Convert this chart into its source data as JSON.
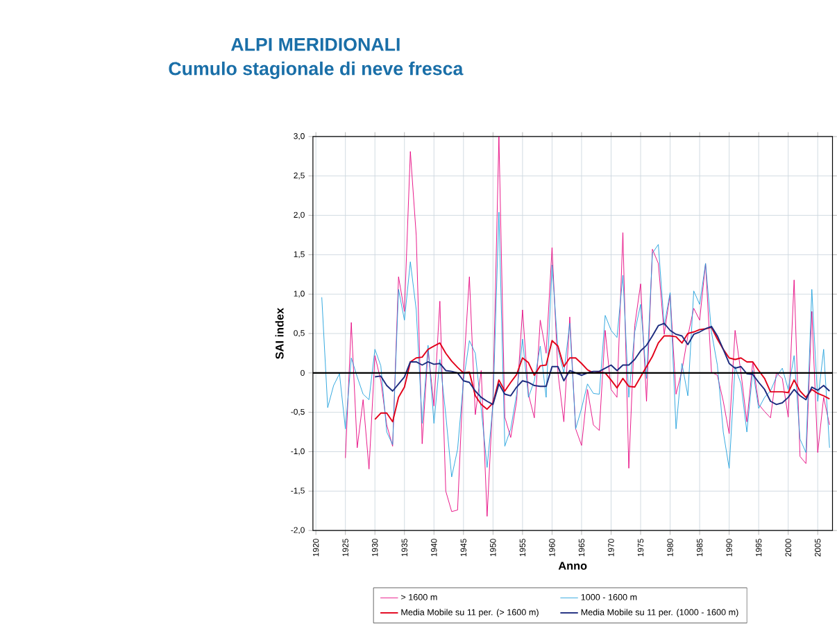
{
  "chart_data": {
    "type": "line",
    "title": "ALPI MERIDIONALI",
    "subtitle": "Cumulo stagionale di neve fresca",
    "xlabel": "Anno",
    "ylabel": "SAI index",
    "xlim": [
      1919.5,
      2007.5
    ],
    "xticks": [
      1920,
      1925,
      1930,
      1935,
      1940,
      1945,
      1950,
      1955,
      1960,
      1965,
      1970,
      1975,
      1980,
      1985,
      1990,
      1995,
      2000,
      2005
    ],
    "ylim": [
      -2,
      3
    ],
    "yticks": [
      {
        "value": -2,
        "label": "-2,0"
      },
      {
        "value": -1.5,
        "label": "-1,5"
      },
      {
        "value": -1,
        "label": "-1,0"
      },
      {
        "value": -0.5,
        "label": "-0,5"
      },
      {
        "value": 0,
        "label": "0"
      },
      {
        "value": 0.5,
        "label": "0,5"
      },
      {
        "value": 1,
        "label": "1,0"
      },
      {
        "value": 1.5,
        "label": "1,5"
      },
      {
        "value": 2,
        "label": "2,0"
      },
      {
        "value": 2.5,
        "label": "2,5"
      },
      {
        "value": 3,
        "label": "3,0"
      }
    ],
    "grid": true,
    "legend": "bottom",
    "marker": "none",
    "line_style": "solid",
    "ref_lines": [
      {
        "axis": "y",
        "value": 0,
        "color": "#000000"
      }
    ],
    "x": [
      1921,
      1922,
      1923,
      1924,
      1925,
      1926,
      1927,
      1928,
      1929,
      1930,
      1931,
      1932,
      1933,
      1934,
      1935,
      1936,
      1937,
      1938,
      1939,
      1940,
      1941,
      1942,
      1943,
      1944,
      1945,
      1946,
      1947,
      1948,
      1949,
      1950,
      1951,
      1952,
      1953,
      1954,
      1955,
      1956,
      1957,
      1958,
      1959,
      1960,
      1961,
      1962,
      1963,
      1964,
      1965,
      1966,
      1967,
      1968,
      1969,
      1970,
      1971,
      1972,
      1973,
      1974,
      1975,
      1976,
      1977,
      1978,
      1979,
      1980,
      1981,
      1982,
      1983,
      1984,
      1985,
      1986,
      1987,
      1988,
      1989,
      1990,
      1991,
      1992,
      1993,
      1994,
      1995,
      1996,
      1997,
      1998,
      1999,
      2000,
      2001,
      2002,
      2003,
      2004,
      2005,
      2006,
      2007
    ],
    "series": [
      {
        "name": "> 1600 m",
        "color": "#e6007e",
        "values": [
          null,
          null,
          null,
          null,
          -1.08,
          0.64,
          -0.95,
          -0.34,
          -1.22,
          0.22,
          -0.1,
          -0.66,
          -0.93,
          1.22,
          0.78,
          2.81,
          1.74,
          -0.9,
          0.3,
          -0.42,
          0.91,
          -1.5,
          -1.76,
          -1.74,
          0.0,
          1.22,
          -0.53,
          0.03,
          -1.82,
          -0.3,
          3.0,
          -0.56,
          -0.82,
          -0.36,
          0.8,
          -0.27,
          -0.57,
          0.67,
          0.25,
          1.59,
          0.0,
          -0.62,
          0.71,
          -0.71,
          -0.92,
          -0.21,
          -0.66,
          -0.73,
          0.54,
          -0.21,
          -0.31,
          1.78,
          -1.21,
          0.6,
          1.13,
          -0.36,
          1.57,
          1.39,
          0.49,
          1.0,
          -0.27,
          0.03,
          0.47,
          0.82,
          0.67,
          1.39,
          0.01,
          -0.03,
          -0.36,
          -0.77,
          0.54,
          0.0,
          -0.62,
          0.14,
          -0.4,
          -0.49,
          -0.57,
          0.0,
          -0.07,
          -0.56,
          1.18,
          -1.06,
          -1.15,
          0.78,
          -1.01,
          -0.31,
          -0.66
        ]
      },
      {
        "name": "1000 - 1600 m",
        "color": "#1ea0dc",
        "values": [
          0.96,
          -0.44,
          -0.16,
          -0.01,
          -0.71,
          0.19,
          -0.05,
          -0.27,
          -0.34,
          0.3,
          0.09,
          -0.75,
          -0.91,
          1.06,
          0.67,
          1.41,
          0.8,
          -0.64,
          0.35,
          -0.64,
          0.17,
          -0.53,
          -1.32,
          -0.97,
          -0.1,
          0.41,
          0.25,
          -0.45,
          -1.2,
          -0.4,
          2.04,
          -0.93,
          -0.71,
          -0.27,
          0.43,
          -0.31,
          -0.1,
          0.34,
          -0.31,
          1.37,
          0.3,
          0.0,
          0.63,
          -0.71,
          -0.45,
          -0.14,
          -0.26,
          -0.27,
          0.73,
          0.54,
          0.45,
          1.24,
          -0.31,
          0.52,
          0.87,
          -0.07,
          1.52,
          1.63,
          0.6,
          1.02,
          -0.71,
          0.12,
          -0.29,
          1.04,
          0.87,
          1.39,
          0.52,
          0.1,
          -0.75,
          -1.21,
          0.08,
          -0.14,
          -0.75,
          0.03,
          -0.45,
          -0.31,
          -0.23,
          -0.05,
          0.06,
          -0.21,
          0.22,
          -0.84,
          -1.01,
          1.06,
          -0.36,
          0.3,
          -0.95
        ]
      },
      {
        "name": "Media Mobile su 11 per. (> 1600 m)",
        "color": "#e2001a",
        "x": [
          1930,
          1931,
          1932,
          1933,
          1934,
          1935,
          1936,
          1937,
          1938,
          1939,
          1940,
          1941,
          1942,
          1943,
          1944,
          1945,
          1946,
          1947,
          1948,
          1949,
          1950,
          1951,
          1952,
          1953,
          1954,
          1955,
          1956,
          1957,
          1958,
          1959,
          1960,
          1961,
          1962,
          1963,
          1964,
          1965,
          1966,
          1967,
          1968,
          1969,
          1970,
          1971,
          1972,
          1973,
          1974,
          1975,
          1976,
          1977,
          1978,
          1979,
          1980,
          1981,
          1982,
          1983,
          1984,
          1985,
          1986,
          1987,
          1988,
          1989,
          1990,
          1991,
          1992,
          1993,
          1994,
          1995,
          1996,
          1997,
          1998,
          1999,
          2000,
          2001,
          2002,
          2003,
          2004,
          2005,
          2006,
          2007
        ],
        "values": [
          -0.59,
          -0.51,
          -0.51,
          -0.62,
          -0.31,
          -0.18,
          0.14,
          0.19,
          0.2,
          0.3,
          0.34,
          0.38,
          0.25,
          0.15,
          0.07,
          0.0,
          0.01,
          -0.29,
          -0.4,
          -0.46,
          -0.38,
          -0.09,
          -0.23,
          -0.12,
          -0.02,
          0.19,
          0.13,
          -0.03,
          0.09,
          0.1,
          0.41,
          0.34,
          0.08,
          0.19,
          0.19,
          0.12,
          0.04,
          0.0,
          0.01,
          0.0,
          -0.09,
          -0.19,
          -0.07,
          -0.17,
          -0.18,
          -0.05,
          0.08,
          0.21,
          0.38,
          0.47,
          0.47,
          0.46,
          0.38,
          0.5,
          0.52,
          0.55,
          0.56,
          0.58,
          0.43,
          0.3,
          0.19,
          0.17,
          0.19,
          0.14,
          0.14,
          0.03,
          -0.07,
          -0.24,
          -0.24,
          -0.24,
          -0.25,
          -0.09,
          -0.23,
          -0.31,
          -0.21,
          -0.26,
          -0.29,
          -0.33
        ]
      },
      {
        "name": "Media Mobile su 11 per. (1000 - 1600 m)",
        "color": "#1d2c7f",
        "x": [
          1930,
          1931,
          1932,
          1933,
          1934,
          1935,
          1936,
          1937,
          1938,
          1939,
          1940,
          1941,
          1942,
          1943,
          1944,
          1945,
          1946,
          1947,
          1948,
          1949,
          1950,
          1951,
          1952,
          1953,
          1954,
          1955,
          1956,
          1957,
          1958,
          1959,
          1960,
          1961,
          1962,
          1963,
          1964,
          1965,
          1966,
          1967,
          1968,
          1969,
          1970,
          1971,
          1972,
          1973,
          1974,
          1975,
          1976,
          1977,
          1978,
          1979,
          1980,
          1981,
          1982,
          1983,
          1984,
          1985,
          1986,
          1987,
          1988,
          1989,
          1990,
          1991,
          1992,
          1993,
          1994,
          1995,
          1996,
          1997,
          1998,
          1999,
          2000,
          2001,
          2002,
          2003,
          2004,
          2005,
          2006,
          2007
        ],
        "values": [
          -0.05,
          -0.04,
          -0.16,
          -0.23,
          -0.14,
          -0.05,
          0.14,
          0.14,
          0.1,
          0.14,
          0.11,
          0.12,
          0.03,
          0.02,
          0.0,
          -0.1,
          -0.12,
          -0.23,
          -0.31,
          -0.36,
          -0.4,
          -0.14,
          -0.27,
          -0.29,
          -0.18,
          -0.1,
          -0.12,
          -0.16,
          -0.17,
          -0.17,
          0.08,
          0.08,
          -0.1,
          0.03,
          0.0,
          -0.03,
          0.0,
          0.02,
          0.02,
          0.06,
          0.1,
          0.03,
          0.1,
          0.1,
          0.17,
          0.28,
          0.35,
          0.47,
          0.6,
          0.63,
          0.54,
          0.49,
          0.47,
          0.36,
          0.49,
          0.52,
          0.56,
          0.59,
          0.47,
          0.3,
          0.12,
          0.06,
          0.08,
          -0.01,
          -0.02,
          -0.12,
          -0.21,
          -0.36,
          -0.4,
          -0.38,
          -0.31,
          -0.21,
          -0.29,
          -0.34,
          -0.18,
          -0.22,
          -0.16,
          -0.23
        ]
      }
    ]
  }
}
